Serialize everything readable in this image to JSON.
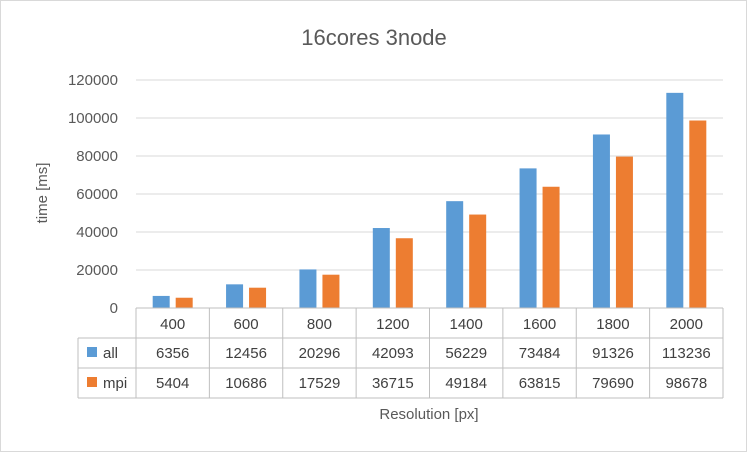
{
  "chart_data": {
    "type": "bar",
    "title": "16cores 3node",
    "xlabel": "Resolution [px]",
    "ylabel": "time [ms]",
    "ylim": [
      0,
      120000
    ],
    "yticks": [
      "0",
      "20000",
      "40000",
      "60000",
      "80000",
      "100000",
      "120000"
    ],
    "categories": [
      "400",
      "600",
      "800",
      "1200",
      "1400",
      "1600",
      "1800",
      "2000"
    ],
    "grid": true,
    "legend": "data table",
    "series": [
      {
        "name": "all",
        "color": "#5b9bd5",
        "values": [
          6356,
          12456,
          20296,
          42093,
          56229,
          73484,
          91326,
          113236
        ],
        "labels": [
          "6356",
          "12456",
          "20296",
          "42093",
          "56229",
          "73484",
          "91326",
          "113236"
        ]
      },
      {
        "name": "mpi",
        "color": "#ed7d31",
        "values": [
          5404,
          10686,
          17529,
          36715,
          49184,
          63815,
          79690,
          98678
        ],
        "labels": [
          "5404",
          "10686",
          "17529",
          "36715",
          "49184",
          "63815",
          "79690",
          "98678"
        ]
      }
    ]
  }
}
